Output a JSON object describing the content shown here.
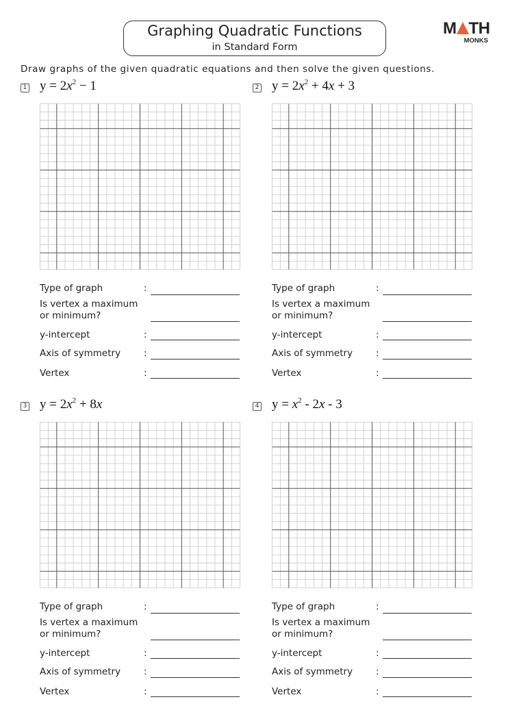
{
  "header": {
    "title": "Graphing Quadratic Functions",
    "subtitle": "in Standard Form",
    "logo": {
      "top": "MATH",
      "bottom": "MONKS",
      "accent_color": "#e8603c"
    }
  },
  "instructions": "Draw graphs of the given quadratic equations and then solve the given questions.",
  "questions_labels": {
    "type": "Type of graph",
    "vertex_kind_1": "Is vertex a maximum",
    "vertex_kind_2": "or minimum?",
    "y_intercept": "y-intercept",
    "axis": "Axis of symmetry",
    "vertex": "Vertex",
    "colon": ":"
  },
  "problems": [
    {
      "number": "1",
      "equation": [
        {
          "t": "y = 2"
        },
        {
          "t": "x",
          "i": true
        },
        {
          "t": "2",
          "sup": true
        },
        {
          "t": " − 1"
        }
      ]
    },
    {
      "number": "2",
      "equation": [
        {
          "t": "y = 2"
        },
        {
          "t": "x",
          "i": true
        },
        {
          "t": "2",
          "sup": true
        },
        {
          "t": " + 4"
        },
        {
          "t": "x",
          "i": true
        },
        {
          "t": " + 3"
        }
      ]
    },
    {
      "number": "3",
      "equation": [
        {
          "t": "y = 2"
        },
        {
          "t": "x",
          "i": true
        },
        {
          "t": "2",
          "sup": true
        },
        {
          "t": " + 8"
        },
        {
          "t": "x",
          "i": true
        }
      ]
    },
    {
      "number": "4",
      "equation": [
        {
          "t": "y = "
        },
        {
          "t": "x",
          "i": true
        },
        {
          "t": "2",
          "sup": true
        },
        {
          "t": " - 2"
        },
        {
          "t": "x",
          "i": true
        },
        {
          "t": " - 3"
        }
      ]
    }
  ],
  "grid_colors": {
    "minor": "#c8c8c8",
    "major": "#555555"
  }
}
